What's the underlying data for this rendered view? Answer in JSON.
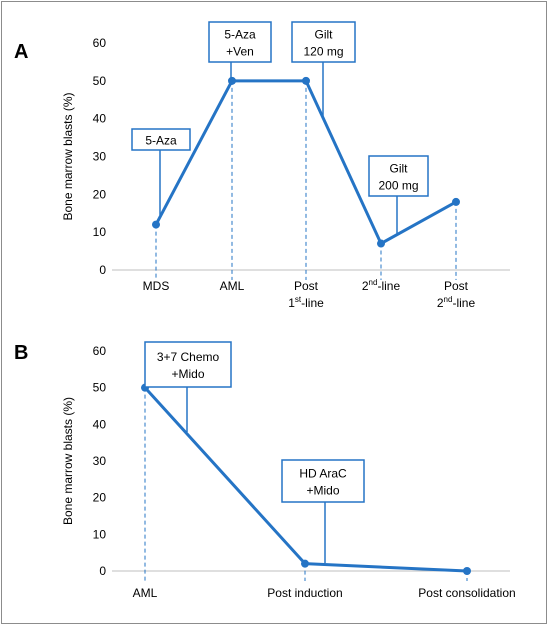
{
  "colors": {
    "line": "#2574c5",
    "axis": "#bfbfbf",
    "text": "#000000",
    "box_border": "#2574c5"
  },
  "chart_data": [
    {
      "panel_label": "A",
      "type": "line",
      "ylabel": "Bone marrow blasts (%)",
      "ylim": [
        0,
        60
      ],
      "yticks": [
        0,
        10,
        20,
        30,
        40,
        50,
        60
      ],
      "categories": [
        {
          "main": "MDS",
          "sup": "",
          "rest": "",
          "line2": ""
        },
        {
          "main": "AML",
          "sup": "",
          "rest": "",
          "line2": ""
        },
        {
          "main": "Post",
          "sup": "",
          "rest": "",
          "line2": "1",
          "line2_sup": "st",
          "line2_rest": "-line"
        },
        {
          "main": "2",
          "sup": "nd",
          "rest": "-line",
          "line2": ""
        },
        {
          "main": "Post",
          "sup": "",
          "rest": "",
          "line2": "2",
          "line2_sup": "nd",
          "line2_rest": "-line"
        }
      ],
      "values": [
        12,
        50,
        50,
        7,
        18
      ],
      "annotations": [
        {
          "lines": [
            "5-Aza"
          ],
          "at_category": 0
        },
        {
          "lines": [
            "5-Aza",
            "+Ven"
          ],
          "at_category": 1
        },
        {
          "lines": [
            "Gilt",
            "120 mg"
          ],
          "at_category": 2
        },
        {
          "lines": [
            "Gilt",
            "200 mg"
          ],
          "at_category": 3
        }
      ]
    },
    {
      "panel_label": "B",
      "type": "line",
      "ylabel": "Bone marrow blasts (%)",
      "ylim": [
        0,
        60
      ],
      "yticks": [
        0,
        10,
        20,
        30,
        40,
        50,
        60
      ],
      "categories": [
        {
          "main": "AML",
          "sup": "",
          "rest": "",
          "line2": ""
        },
        {
          "main": "Post induction",
          "sup": "",
          "rest": "",
          "line2": ""
        },
        {
          "main": "Post consolidation",
          "sup": "",
          "rest": "",
          "line2": ""
        }
      ],
      "values": [
        50,
        2,
        0
      ],
      "annotations": [
        {
          "lines": [
            "3+7 Chemo",
            "+Mido"
          ],
          "at_category": 0
        },
        {
          "lines": [
            "HD AraC",
            "+Mido"
          ],
          "at_category": 1
        }
      ]
    }
  ]
}
